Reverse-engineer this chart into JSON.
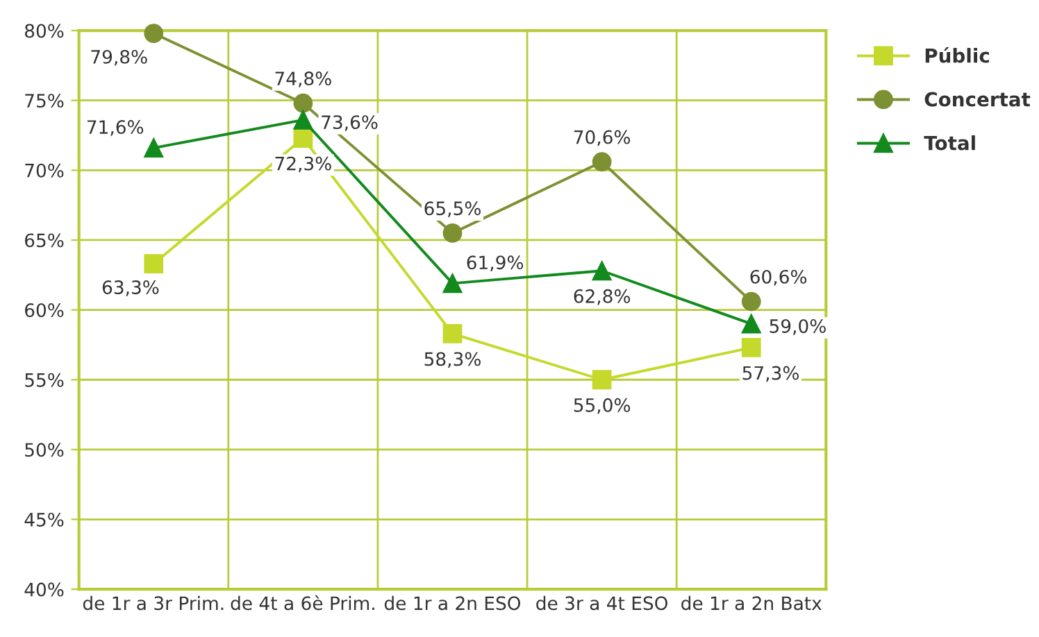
{
  "chart_data": {
    "type": "line",
    "categories": [
      "de 1r a 3r Prim.",
      "de 4t a 6è Prim.",
      "de 1r a 2n ESO",
      "de 3r a 4t ESO",
      "de 1r a 2n Batx"
    ],
    "series": [
      {
        "name": "Públic",
        "color": "#c5d92d",
        "marker": "square",
        "values": [
          63.3,
          72.3,
          58.3,
          55.0,
          57.3
        ],
        "value_labels": [
          "63,3%",
          "72,3%",
          "58,3%",
          "55,0%",
          "57,3%"
        ]
      },
      {
        "name": "Concertat",
        "color": "#7d9133",
        "marker": "circle",
        "values": [
          79.8,
          74.8,
          65.5,
          70.6,
          60.6
        ],
        "value_labels": [
          "79,8%",
          "74,8%",
          "65,5%",
          "70,6%",
          "60,6%"
        ]
      },
      {
        "name": "Total",
        "color": "#138a1e",
        "marker": "triangle",
        "values": [
          71.6,
          73.6,
          61.9,
          62.8,
          59.0
        ],
        "value_labels": [
          "71,6%",
          "73,6%",
          "61,9%",
          "62,8%",
          "59,0%"
        ]
      }
    ],
    "ylim": [
      40,
      80
    ],
    "yticks": [
      {
        "value": 40,
        "label": "40%"
      },
      {
        "value": 45,
        "label": "45%"
      },
      {
        "value": 50,
        "label": "50%"
      },
      {
        "value": 55,
        "label": "55%"
      },
      {
        "value": 60,
        "label": "60%"
      },
      {
        "value": 65,
        "label": "65%"
      },
      {
        "value": 70,
        "label": "70%"
      },
      {
        "value": 75,
        "label": "75%"
      },
      {
        "value": 80,
        "label": "80%"
      }
    ],
    "grid": true,
    "legend": "top right",
    "line_style": "solid"
  }
}
